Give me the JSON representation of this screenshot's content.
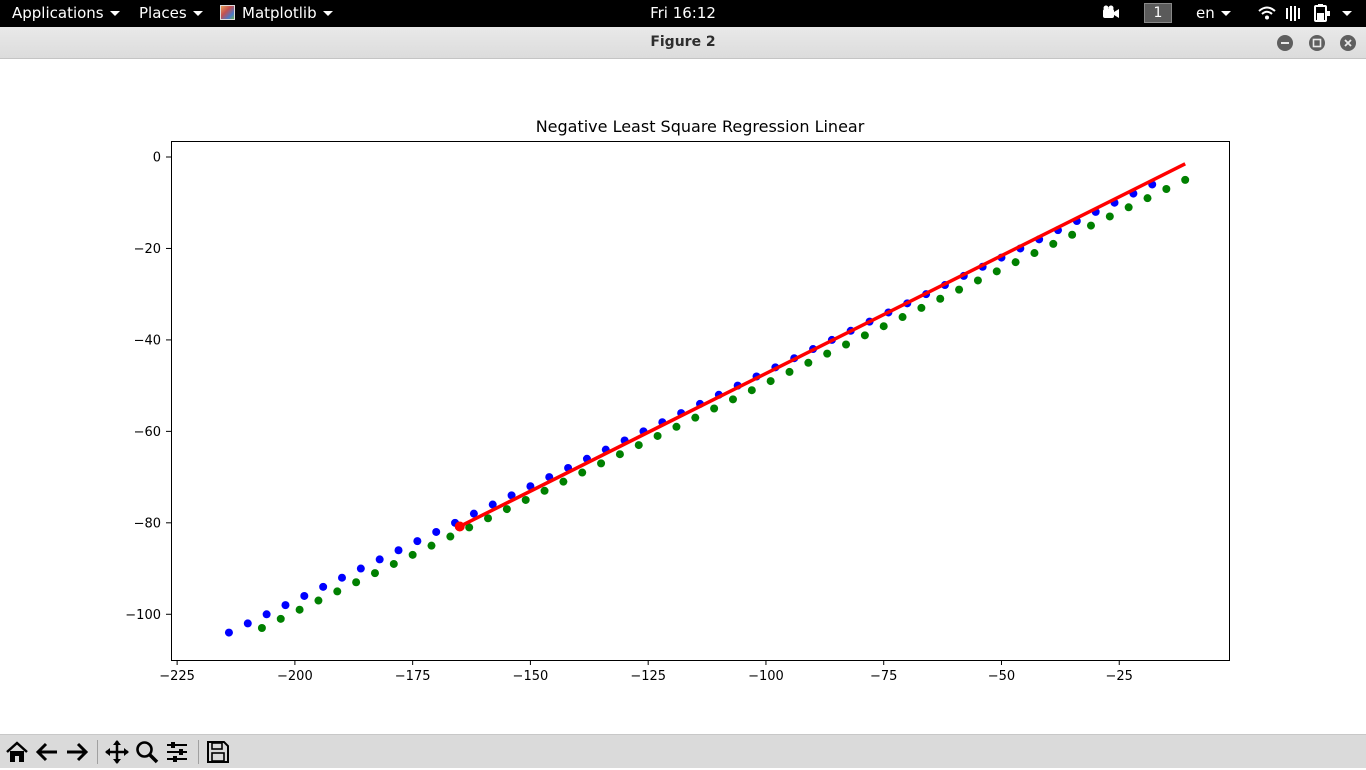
{
  "topbar": {
    "applications": "Applications",
    "places": "Places",
    "app_name": "Matplotlib",
    "clock": "Fri 16:12",
    "workspace": "1",
    "language": "en"
  },
  "window": {
    "title": "Figure 2"
  },
  "chart_data": {
    "type": "scatter",
    "title": "Negative Least Square Regression Linear",
    "xlabel": "",
    "ylabel": "",
    "xlim": [
      -226.3,
      -1.7
    ],
    "ylim": [
      -110,
      3.5
    ],
    "xticks": [
      -225,
      -200,
      -175,
      -150,
      -125,
      -100,
      -75,
      -50,
      -25
    ],
    "xtick_labels": [
      "−225",
      "−200",
      "−175",
      "−150",
      "−125",
      "−100",
      "−75",
      "−50",
      "−25"
    ],
    "yticks": [
      0,
      -20,
      -40,
      -60,
      -80,
      -100
    ],
    "ytick_labels": [
      "0",
      "−20",
      "−40",
      "−60",
      "−80",
      "−100"
    ],
    "grid": false,
    "series": [
      {
        "color": "#0000ff",
        "kind": "points",
        "x": [
          -214,
          -210,
          -206,
          -202,
          -198,
          -194,
          -190,
          -186,
          -182,
          -178,
          -174,
          -170,
          -166,
          -162,
          -158,
          -154,
          -150,
          -146,
          -142,
          -138,
          -134,
          -130,
          -126,
          -122,
          -118,
          -114,
          -110,
          -106,
          -102,
          -98,
          -94,
          -90,
          -86,
          -82,
          -78,
          -74,
          -70,
          -66,
          -62,
          -58,
          -54,
          -50,
          -46,
          -42,
          -38,
          -34,
          -30,
          -26,
          -22,
          -18
        ],
        "y": [
          -104,
          -102,
          -100,
          -98,
          -96,
          -94,
          -92,
          -90,
          -88,
          -86,
          -84,
          -82,
          -80,
          -78,
          -76,
          -74,
          -72,
          -70,
          -68,
          -66,
          -64,
          -62,
          -60,
          -58,
          -56,
          -54,
          -52,
          -50,
          -48,
          -46,
          -44,
          -42,
          -40,
          -38,
          -36,
          -34,
          -32,
          -30,
          -28,
          -26,
          -24,
          -22,
          -20,
          -18,
          -16,
          -14,
          -12,
          -10,
          -8,
          -6
        ]
      },
      {
        "color": "#008000",
        "kind": "points",
        "x": [
          -207,
          -203,
          -199,
          -195,
          -191,
          -187,
          -183,
          -179,
          -175,
          -171,
          -167,
          -163,
          -159,
          -155,
          -151,
          -147,
          -143,
          -139,
          -135,
          -131,
          -127,
          -123,
          -119,
          -115,
          -111,
          -107,
          -103,
          -99,
          -95,
          -91,
          -87,
          -83,
          -79,
          -75,
          -71,
          -67,
          -63,
          -59,
          -55,
          -51,
          -47,
          -43,
          -39,
          -35,
          -31,
          -27,
          -23,
          -19,
          -15,
          -11
        ],
        "y": [
          -103,
          -101,
          -99,
          -97,
          -95,
          -93,
          -91,
          -89,
          -87,
          -85,
          -83,
          -81,
          -79,
          -77,
          -75,
          -73,
          -71,
          -69,
          -67,
          -65,
          -63,
          -61,
          -59,
          -57,
          -55,
          -53,
          -51,
          -49,
          -47,
          -45,
          -43,
          -41,
          -39,
          -37,
          -35,
          -33,
          -31,
          -29,
          -27,
          -25,
          -23,
          -21,
          -19,
          -17,
          -15,
          -13,
          -11,
          -9,
          -7,
          -5
        ]
      },
      {
        "color": "#ff0000",
        "kind": "line",
        "x": [
          -165,
          -11
        ],
        "y": [
          -80.8,
          -1.5
        ]
      },
      {
        "color": "#ff0000",
        "kind": "marker",
        "x": [
          -165
        ],
        "y": [
          -80.8
        ]
      }
    ]
  },
  "toolbar": {
    "home": "home-icon",
    "back": "back-arrow-icon",
    "forward": "forward-arrow-icon",
    "pan": "pan-icon",
    "zoom": "zoom-icon",
    "configure": "configure-subplots-icon",
    "save": "save-icon"
  }
}
